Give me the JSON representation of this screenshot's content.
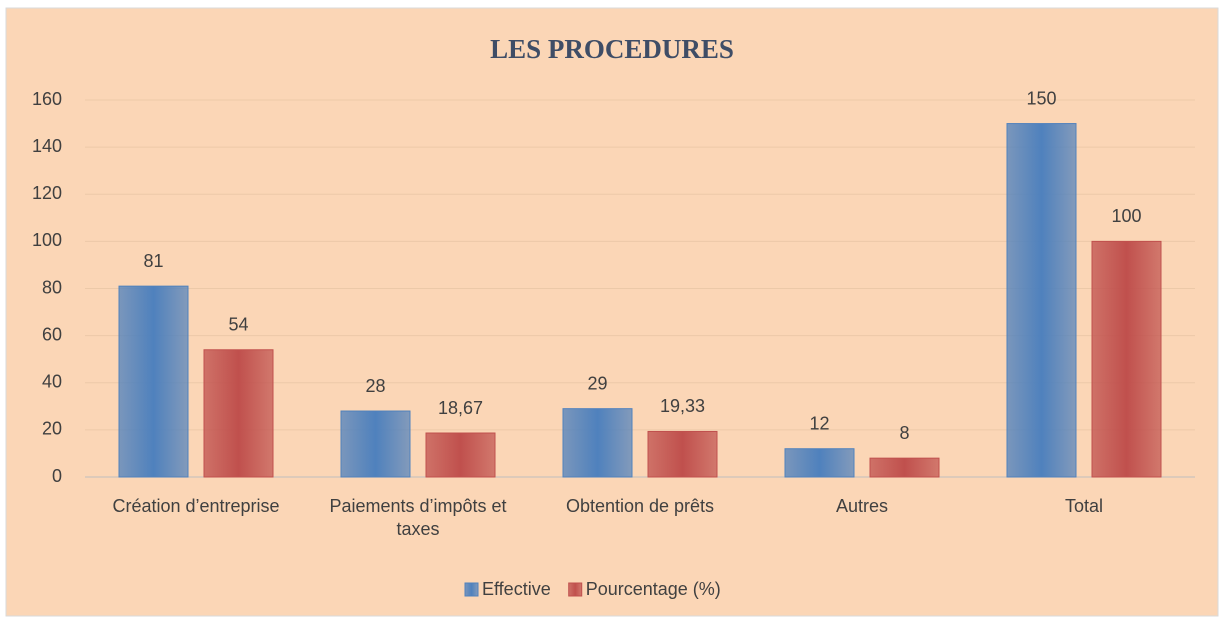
{
  "chart_data": {
    "type": "bar",
    "title": "LES PROCEDURES",
    "categories": [
      "Création d’entreprise",
      "Paiements d’impôts et taxes",
      "Obtention de prêts",
      "Autres",
      "Total"
    ],
    "series": [
      {
        "name": "Effective",
        "color": "#4f81bd",
        "values": [
          81,
          28,
          29,
          12,
          150
        ]
      },
      {
        "name": "Pourcentage (%)",
        "color": "#c0504d",
        "values": [
          54,
          18.67,
          19.33,
          8,
          100
        ],
        "value_labels": [
          "54",
          "18,67",
          "19,33",
          "8",
          "100"
        ]
      }
    ],
    "ylim": [
      0,
      160
    ],
    "yticks": [
      0,
      20,
      40,
      60,
      80,
      100,
      120,
      140,
      160
    ],
    "grid": true,
    "legend": "bottom"
  }
}
